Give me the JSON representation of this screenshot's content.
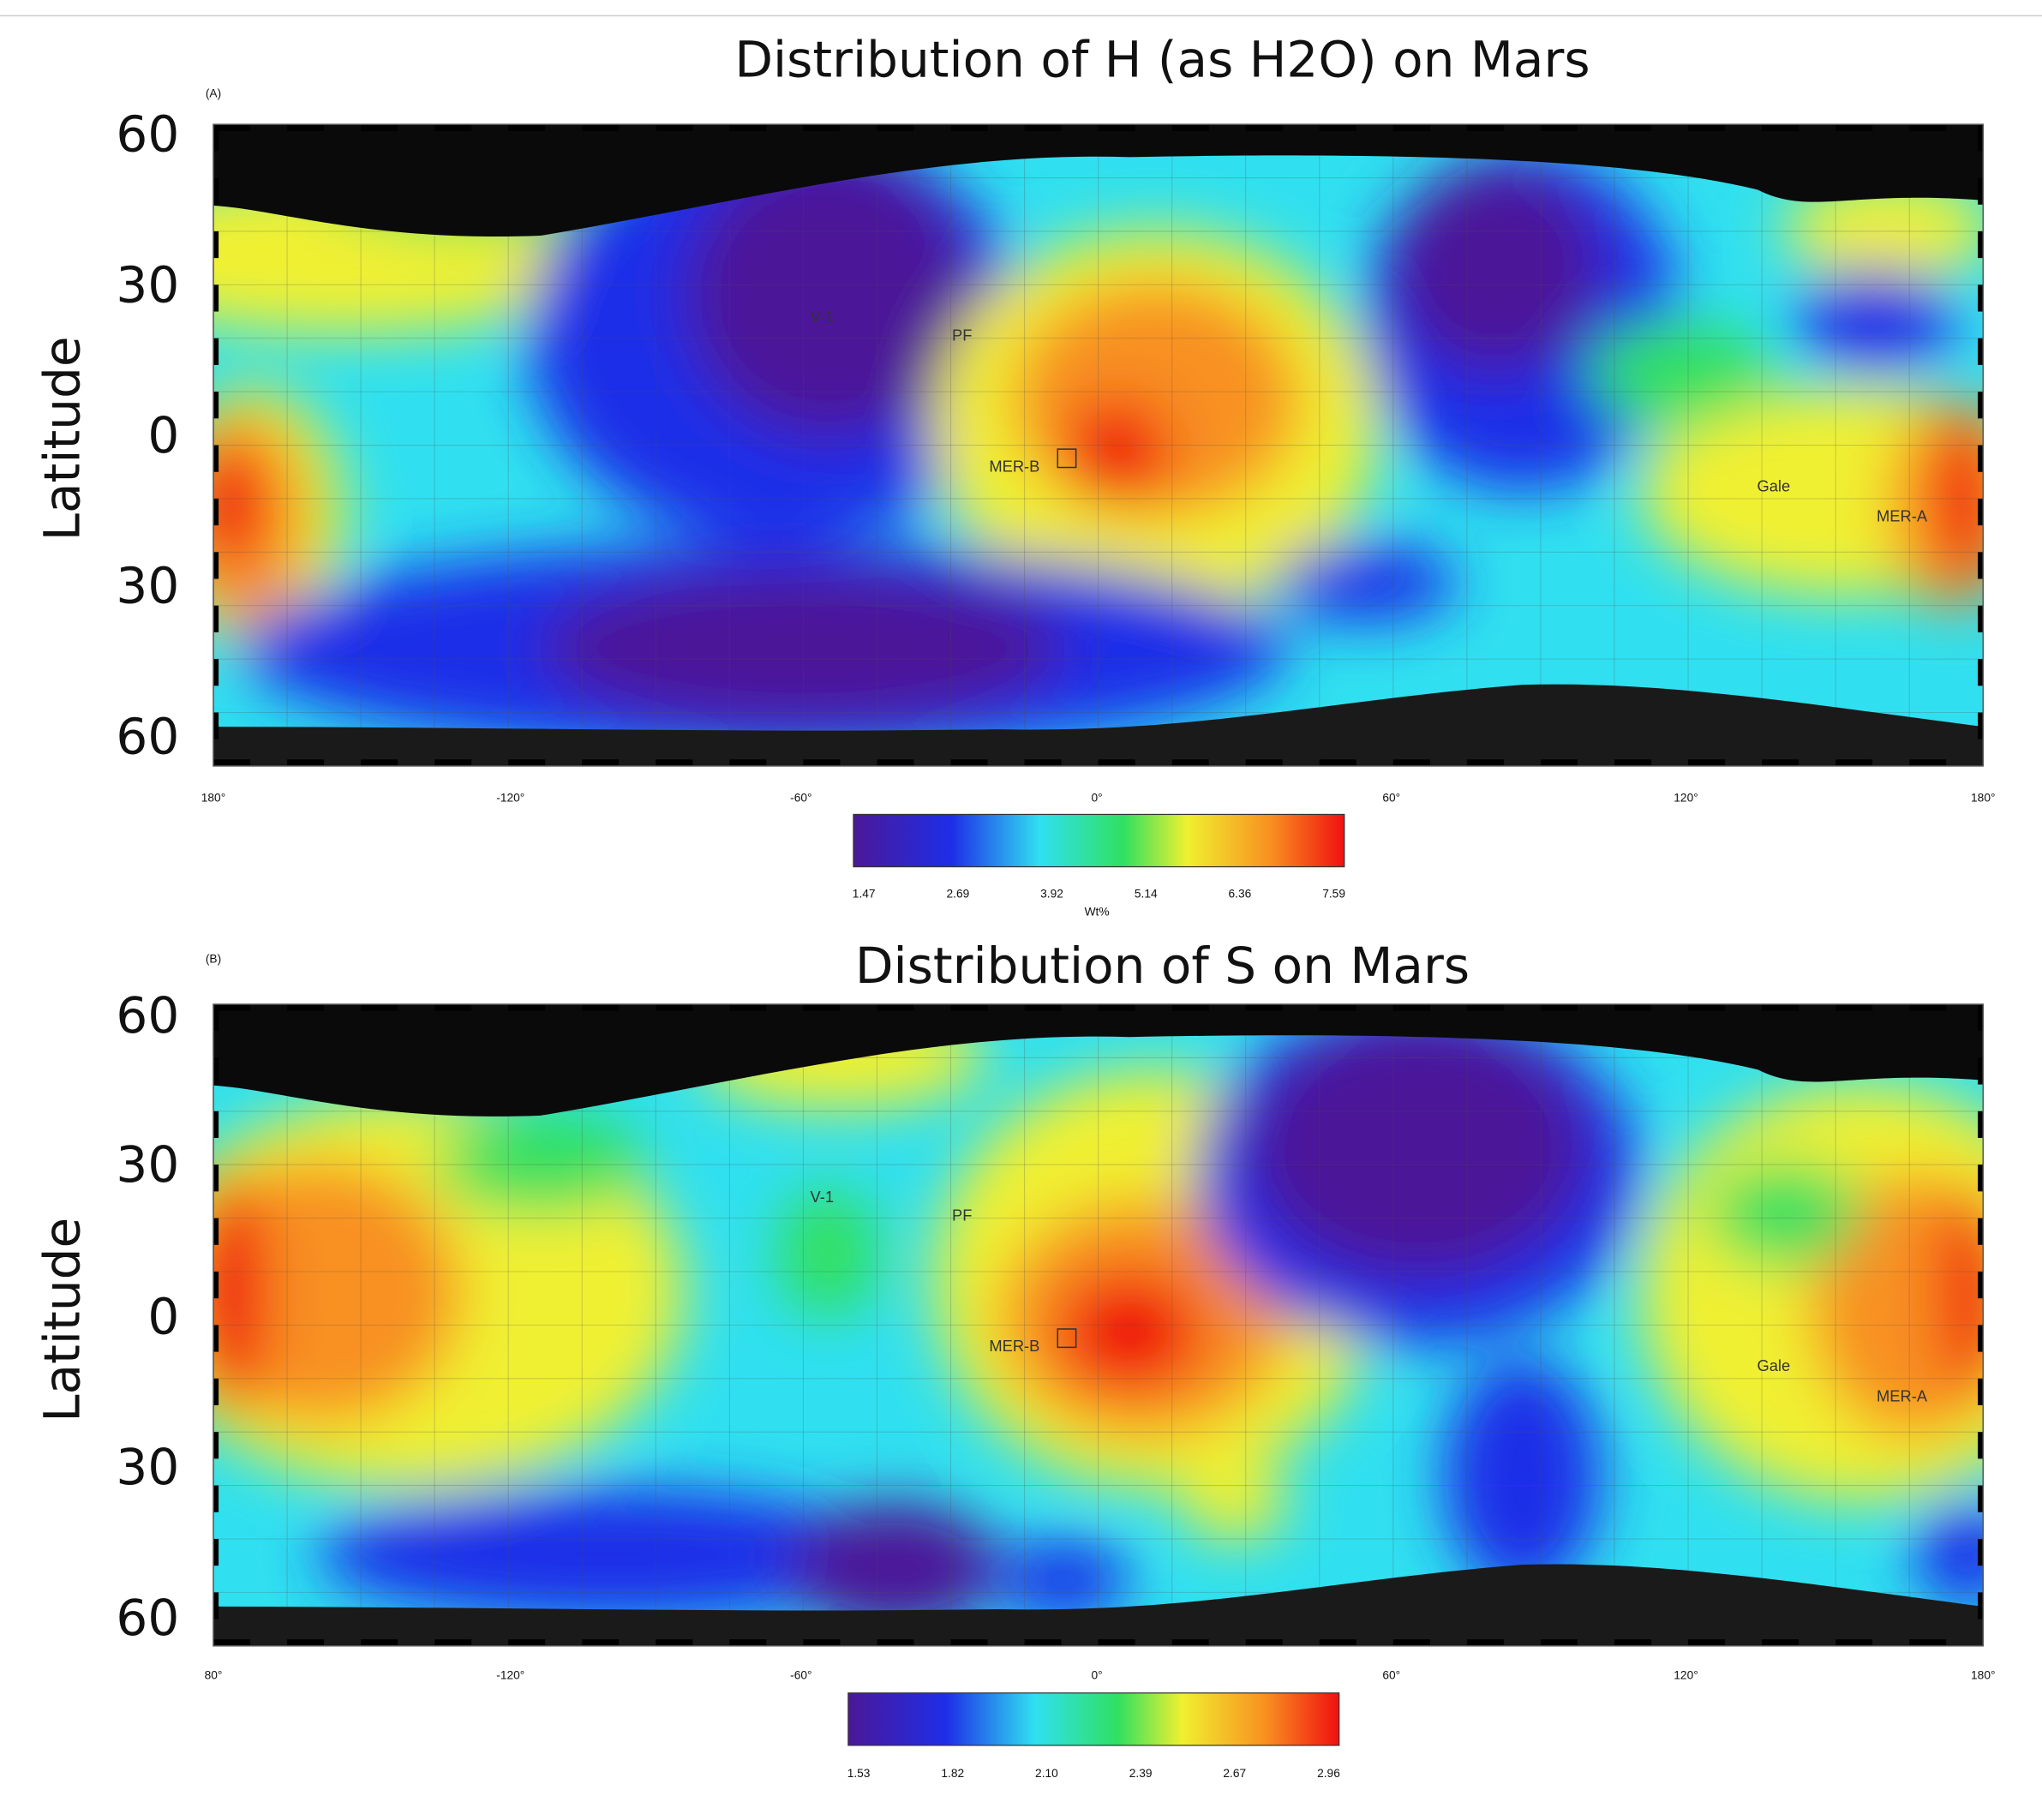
{
  "panels": [
    {
      "label": "(A)",
      "title": "Distribution of H (as H2O) on Mars",
      "y_axis_label": "Latitude",
      "y_ticks": [
        "60",
        "30",
        "0",
        "30",
        "60"
      ],
      "x_ticks": [
        "180°",
        "-120°",
        "-60°",
        "0°",
        "60°",
        "120°",
        "180°"
      ],
      "sites": [
        "V-1",
        "PF",
        "MER-B",
        "Gale",
        "MER-A"
      ],
      "colorbar_ticks": [
        "1.47",
        "2.69",
        "3.92",
        "5.14",
        "6.36",
        "7.59"
      ],
      "colorbar_unit": "Wt%"
    },
    {
      "label": "(B)",
      "title": "Distribution of S on Mars",
      "y_axis_label": "Latitude",
      "y_ticks": [
        "60",
        "30",
        "0",
        "30",
        "60"
      ],
      "x_ticks": [
        "80°",
        "-120°",
        "-60°",
        "0°",
        "60°",
        "120°",
        "180°"
      ],
      "sites": [
        "V-1",
        "PF",
        "MER-B",
        "Gale",
        "MER-A"
      ],
      "colorbar_ticks": [
        "1.53",
        "1.82",
        "2.10",
        "2.39",
        "2.67",
        "2.96"
      ]
    }
  ]
}
